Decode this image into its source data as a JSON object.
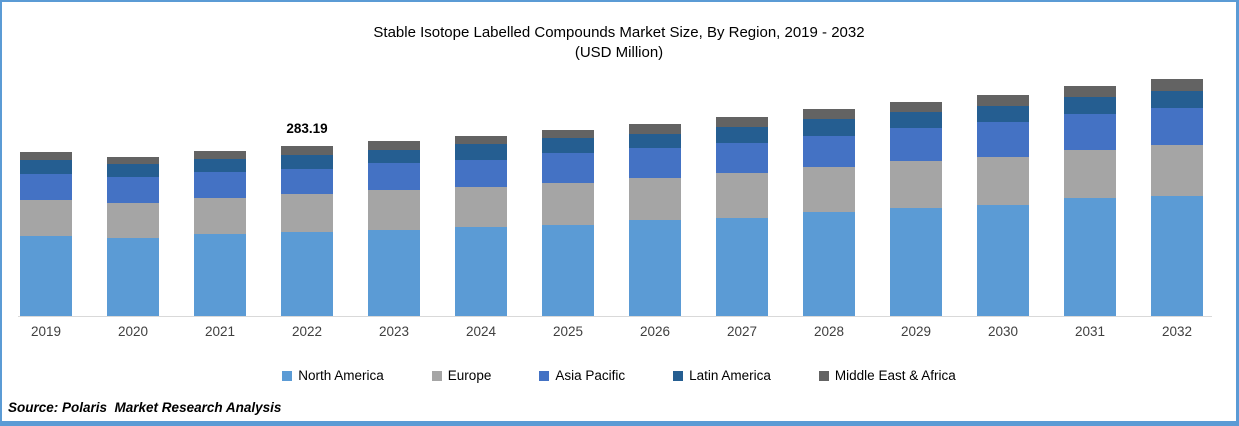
{
  "title": "Stable Isotope Labelled Compounds Market Size, By Region, 2019 - 2032",
  "subtitle": "(USD Million)",
  "source": "Source: Polaris  Market Research Analysis",
  "annotation": {
    "year": "2022",
    "text": "283.19"
  },
  "colors": {
    "frame_border": "#5B9BD5",
    "axis_line": "#D9D9D9"
  },
  "chart_data": {
    "type": "bar",
    "stacked": true,
    "title": "Stable Isotope Labelled Compounds Market Size, By Region, 2019 - 2032",
    "subtitle": "(USD Million)",
    "xlabel": "",
    "ylabel": "USD Million",
    "grid": false,
    "y_axis_visible": false,
    "legend_position": "bottom",
    "categories": [
      "2019",
      "2020",
      "2021",
      "2022",
      "2023",
      "2024",
      "2025",
      "2026",
      "2027",
      "2028",
      "2029",
      "2030",
      "2031",
      "2032"
    ],
    "series": [
      {
        "name": "North America",
        "color": "#5B9BD5",
        "values": [
          133.3,
          130.5,
          136.1,
          139.9,
          143.3,
          148.3,
          151.6,
          159.9,
          163.8,
          173.8,
          179.4,
          184.9,
          196.0,
          199.9
        ]
      },
      {
        "name": "Europe",
        "color": "#A5A5A5",
        "values": [
          59.5,
          58.3,
          61.1,
          62.8,
          66.1,
          66.6,
          70.5,
          69.4,
          73.9,
          73.9,
          78.9,
          80.5,
          80.5,
          85.0
        ]
      },
      {
        "name": "Asia Pacific",
        "color": "#4472C4",
        "values": [
          44.4,
          42.8,
          43.3,
          41.6,
          45.0,
          44.4,
          48.9,
          50.0,
          51.1,
          52.2,
          54.4,
          58.3,
          59.5,
          61.1
        ]
      },
      {
        "name": "Latin America",
        "color": "#255E91",
        "values": [
          22.2,
          21.1,
          20.6,
          23.9,
          22.2,
          26.7,
          25.0,
          23.3,
          26.7,
          27.8,
          27.8,
          26.7,
          29.4,
          29.4
        ]
      },
      {
        "name": "Middle East & Africa",
        "color": "#636363",
        "values": [
          13.9,
          12.2,
          13.9,
          14.99,
          15.0,
          14.4,
          13.5,
          16.7,
          15.6,
          17.2,
          16.7,
          18.3,
          17.8,
          18.9
        ]
      }
    ],
    "data_labels": [
      {
        "category": "2022",
        "total": 283.19,
        "label": "283.19"
      }
    ],
    "estimated_totals": [
      273.3,
      264.9,
      275.0,
      283.19,
      291.6,
      300.4,
      309.5,
      319.3,
      331.1,
      344.9,
      357.2,
      368.7,
      383.2,
      394.3
    ]
  }
}
